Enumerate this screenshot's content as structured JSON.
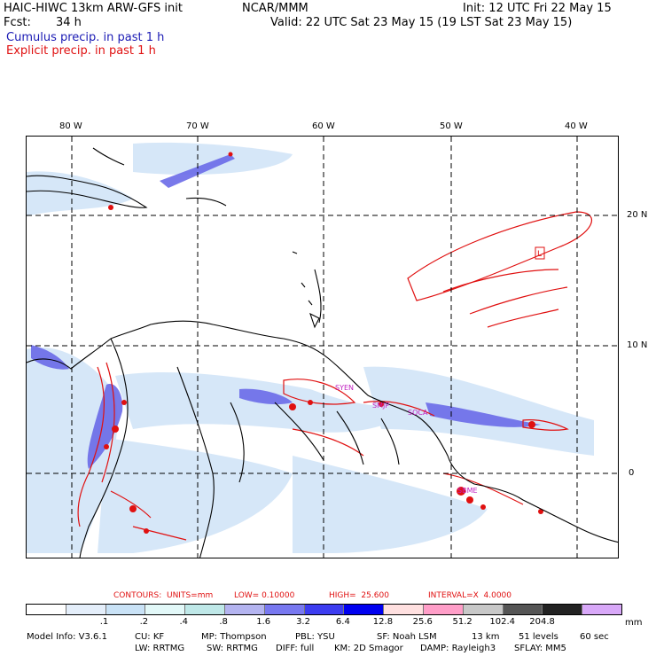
{
  "header": {
    "model": "HAIC-HIWC 13km ARW-GFS init",
    "org": "NCAR/MMM",
    "init": "Init: 12 UTC Fri 22 May 15",
    "fcst_label": "Fcst:",
    "fcst_value": "34 h",
    "valid": "Valid: 22 UTC Sat 23 May 15 (19 LST Sat 23 May 15)",
    "legend_cumulus": "Cumulus precip. in past 1 h",
    "legend_explicit": "Explicit precip. in past 1 h"
  },
  "map": {
    "lon_labels": [
      "80 W",
      "70 W",
      "60 W",
      "50 W",
      "40 W"
    ],
    "lat_labels": [
      "20 N",
      "10 N",
      "0"
    ],
    "station_labels": [
      "SYEN",
      "SMJP",
      "SOCA",
      "SBME"
    ],
    "box_label": "L",
    "colors": {
      "coast": "#000000",
      "grid": "#000000",
      "cumulus": "#3344dd",
      "explicit": "#e01010"
    }
  },
  "contours": {
    "units_label": "CONTOURS:  UNITS=mm",
    "low": "LOW= 0.10000",
    "high": "HIGH=  25.600",
    "interval": "INTERVAL=X  4.0000"
  },
  "scale": {
    "colors": [
      "#ffffff",
      "#e4eefa",
      "#c9e2f6",
      "#e2f8f8",
      "#bfe8e8",
      "#b4b4f0",
      "#7878f0",
      "#3c3cf0",
      "#0000f0",
      "#ffe0e0",
      "#ff9ec8",
      "#c8c8c8",
      "#555555",
      "#222222",
      "#d8a8f8"
    ],
    "labels": [
      ".1",
      ".2",
      ".4",
      ".8",
      "1.6",
      "3.2",
      "6.4",
      "12.8",
      "25.6",
      "51.2",
      "102.4",
      "204.8"
    ],
    "unit": "mm"
  },
  "model_info": {
    "line1": [
      "Model Info: V3.6.1",
      "CU: KF",
      "MP: Thompson",
      "PBL: YSU",
      "SF: Noah LSM",
      "13 km",
      "51 levels",
      "60 sec"
    ],
    "line2": [
      "LW: RRTMG",
      "SW: RRTMG",
      "DIFF: full",
      "KM: 2D Smagor",
      "DAMP: Rayleigh3",
      "SFLAY: MM5"
    ]
  }
}
